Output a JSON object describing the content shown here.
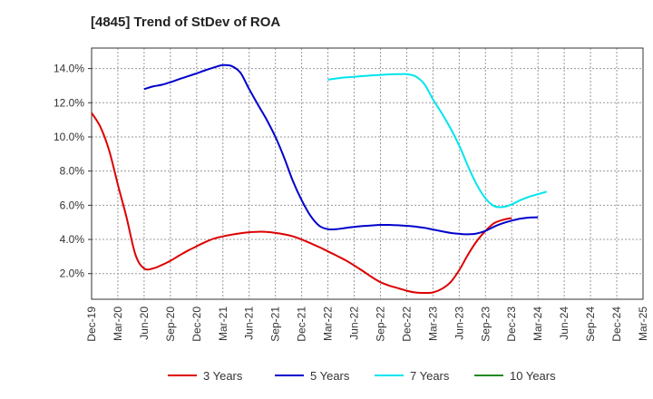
{
  "chart_data": {
    "type": "line",
    "title": "[4845]  Trend of StDev of ROA",
    "xlabel": "",
    "ylabel": "",
    "x_ticks": [
      "Dec-19",
      "Mar-20",
      "Jun-20",
      "Sep-20",
      "Dec-20",
      "Mar-21",
      "Jun-21",
      "Sep-21",
      "Dec-21",
      "Mar-22",
      "Jun-22",
      "Sep-22",
      "Dec-22",
      "Mar-23",
      "Jun-23",
      "Sep-23",
      "Dec-23",
      "Mar-24",
      "Jun-24",
      "Sep-24",
      "Dec-24",
      "Mar-25"
    ],
    "y_ticks": [
      "2.0%",
      "4.0%",
      "6.0%",
      "8.0%",
      "10.0%",
      "12.0%",
      "14.0%"
    ],
    "ylim": [
      0.5,
      15.2
    ],
    "grid": true,
    "legend_position": "bottom",
    "series": [
      {
        "name": "3 Years",
        "color": "#dd0000",
        "points": [
          [
            0,
            11.4
          ],
          [
            0.33,
            10.6
          ],
          [
            0.67,
            9.2
          ],
          [
            1,
            7.2
          ],
          [
            1.33,
            5.3
          ],
          [
            1.67,
            3.1
          ],
          [
            2,
            2.3
          ],
          [
            2.33,
            2.3
          ],
          [
            2.67,
            2.5
          ],
          [
            3,
            2.75
          ],
          [
            3.33,
            3.05
          ],
          [
            3.67,
            3.35
          ],
          [
            4,
            3.6
          ],
          [
            4.33,
            3.85
          ],
          [
            4.67,
            4.05
          ],
          [
            5,
            4.18
          ],
          [
            5.33,
            4.28
          ],
          [
            5.67,
            4.36
          ],
          [
            6,
            4.42
          ],
          [
            6.33,
            4.45
          ],
          [
            6.67,
            4.44
          ],
          [
            7,
            4.38
          ],
          [
            7.33,
            4.3
          ],
          [
            7.67,
            4.18
          ],
          [
            8,
            4.0
          ],
          [
            8.33,
            3.78
          ],
          [
            8.67,
            3.55
          ],
          [
            9,
            3.3
          ],
          [
            9.33,
            3.05
          ],
          [
            9.67,
            2.78
          ],
          [
            10,
            2.48
          ],
          [
            10.33,
            2.15
          ],
          [
            10.67,
            1.8
          ],
          [
            11,
            1.5
          ],
          [
            11.33,
            1.3
          ],
          [
            11.67,
            1.15
          ],
          [
            12,
            1.0
          ],
          [
            12.33,
            0.9
          ],
          [
            12.67,
            0.87
          ],
          [
            13,
            0.9
          ],
          [
            13.33,
            1.1
          ],
          [
            13.67,
            1.5
          ],
          [
            14,
            2.2
          ],
          [
            14.33,
            3.1
          ],
          [
            14.67,
            3.9
          ],
          [
            15,
            4.5
          ],
          [
            15.33,
            4.95
          ],
          [
            15.67,
            5.15
          ],
          [
            16,
            5.25
          ]
        ]
      },
      {
        "name": "5 Years",
        "color": "#0000cc",
        "points": [
          [
            2,
            12.8
          ],
          [
            2.33,
            12.95
          ],
          [
            2.67,
            13.05
          ],
          [
            3,
            13.2
          ],
          [
            3.33,
            13.38
          ],
          [
            3.67,
            13.55
          ],
          [
            4,
            13.72
          ],
          [
            4.33,
            13.9
          ],
          [
            4.67,
            14.07
          ],
          [
            5,
            14.2
          ],
          [
            5.33,
            14.15
          ],
          [
            5.67,
            13.75
          ],
          [
            6,
            12.8
          ],
          [
            6.33,
            11.9
          ],
          [
            6.67,
            11.0
          ],
          [
            7,
            10.0
          ],
          [
            7.33,
            8.8
          ],
          [
            7.67,
            7.4
          ],
          [
            8,
            6.3
          ],
          [
            8.33,
            5.4
          ],
          [
            8.67,
            4.8
          ],
          [
            9,
            4.6
          ],
          [
            9.33,
            4.6
          ],
          [
            9.67,
            4.67
          ],
          [
            10,
            4.73
          ],
          [
            10.33,
            4.78
          ],
          [
            10.67,
            4.82
          ],
          [
            11,
            4.85
          ],
          [
            11.33,
            4.85
          ],
          [
            11.67,
            4.83
          ],
          [
            12,
            4.8
          ],
          [
            12.33,
            4.75
          ],
          [
            12.67,
            4.68
          ],
          [
            13,
            4.58
          ],
          [
            13.33,
            4.48
          ],
          [
            13.67,
            4.38
          ],
          [
            14,
            4.33
          ],
          [
            14.33,
            4.3
          ],
          [
            14.67,
            4.35
          ],
          [
            15,
            4.5
          ],
          [
            15.33,
            4.75
          ],
          [
            15.67,
            4.95
          ],
          [
            16,
            5.1
          ],
          [
            16.33,
            5.22
          ],
          [
            16.67,
            5.28
          ],
          [
            17,
            5.3
          ]
        ]
      },
      {
        "name": "7 Years",
        "color": "#00e5ee",
        "points": [
          [
            9,
            13.35
          ],
          [
            9.33,
            13.42
          ],
          [
            9.67,
            13.48
          ],
          [
            10,
            13.52
          ],
          [
            10.33,
            13.56
          ],
          [
            10.67,
            13.6
          ],
          [
            11,
            13.63
          ],
          [
            11.33,
            13.66
          ],
          [
            11.67,
            13.67
          ],
          [
            12,
            13.67
          ],
          [
            12.33,
            13.55
          ],
          [
            12.67,
            13.1
          ],
          [
            13,
            12.2
          ],
          [
            13.33,
            11.4
          ],
          [
            13.67,
            10.5
          ],
          [
            14,
            9.5
          ],
          [
            14.33,
            8.3
          ],
          [
            14.67,
            7.2
          ],
          [
            15,
            6.4
          ],
          [
            15.33,
            5.95
          ],
          [
            15.67,
            5.9
          ],
          [
            16,
            6.05
          ],
          [
            16.33,
            6.3
          ],
          [
            16.67,
            6.5
          ],
          [
            17,
            6.65
          ],
          [
            17.33,
            6.8
          ]
        ]
      },
      {
        "name": "10 Years",
        "color": "#228822",
        "points": []
      }
    ]
  }
}
